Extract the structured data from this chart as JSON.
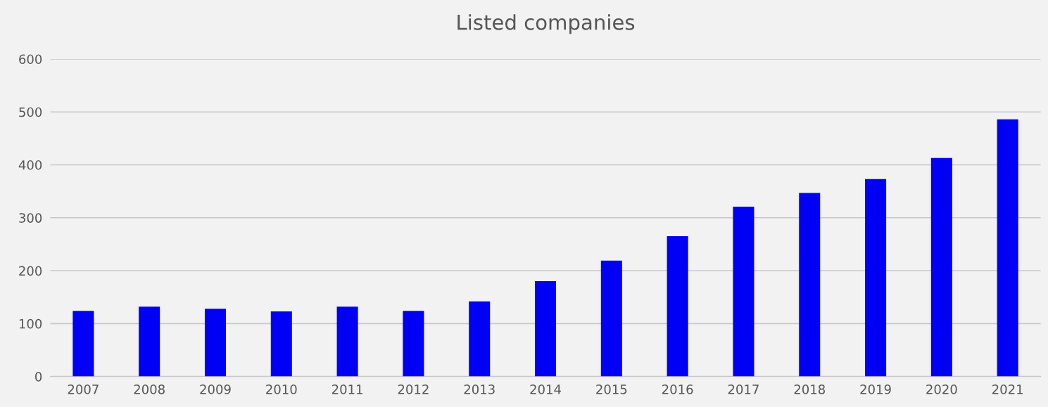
{
  "chart_data": {
    "type": "bar",
    "title": "Listed companies",
    "categories": [
      "2007",
      "2008",
      "2009",
      "2010",
      "2011",
      "2012",
      "2013",
      "2014",
      "2015",
      "2016",
      "2017",
      "2018",
      "2019",
      "2020",
      "2021"
    ],
    "values": [
      124,
      132,
      128,
      123,
      132,
      124,
      142,
      180,
      219,
      265,
      321,
      347,
      373,
      413,
      486
    ],
    "color": "#0000f5",
    "ylim": [
      0,
      600
    ],
    "yticks": [
      0,
      100,
      200,
      300,
      400,
      500,
      600
    ],
    "grid": "y"
  }
}
